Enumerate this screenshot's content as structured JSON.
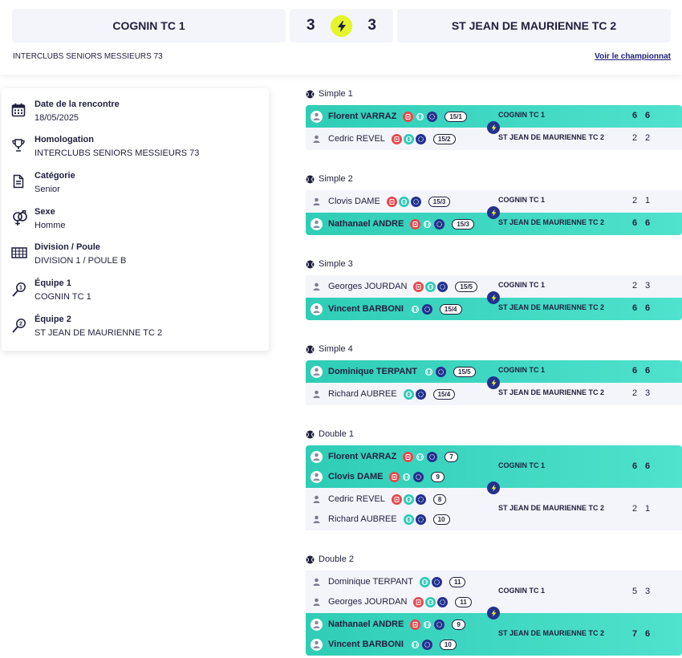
{
  "header": {
    "home_team": "COGNIN TC 1",
    "away_team": "ST JEAN DE MAURIENNE TC 2",
    "home_score": "3",
    "away_score": "3",
    "competition": "INTERCLUBS SENIORS MESSIEURS 73",
    "see_championship": "Voir le championnat"
  },
  "info": [
    {
      "icon": "calendar-icon",
      "label": "Date de la rencontre",
      "value": "18/05/2025"
    },
    {
      "icon": "trophy-icon",
      "label": "Homologation",
      "value": "INTERCLUBS SENIORS MESSIEURS 73"
    },
    {
      "icon": "document-icon",
      "label": "Catégorie",
      "value": "Senior"
    },
    {
      "icon": "gender-icon",
      "label": "Sexe",
      "value": "Homme"
    },
    {
      "icon": "grid-icon",
      "label": "Division / Poule",
      "value": "DIVISION 1 / POULE B"
    },
    {
      "icon": "racket-1-icon",
      "label": "Équipe 1",
      "value": "COGNIN TC 1"
    },
    {
      "icon": "racket-2-icon",
      "label": "Équipe 2",
      "value": "ST JEAN DE MAURIENNE TC 2"
    }
  ],
  "colors": {
    "win": "#3ed8c3",
    "lose": "#f4f5fb",
    "bolt": "#e4f52a",
    "navy": "#23308f",
    "red": "#e5484d"
  },
  "matches": [
    {
      "title": "Simple 1",
      "teams": [
        {
          "win": true,
          "team": "COGNIN TC 1",
          "scores": [
            "6",
            "6"
          ],
          "players": [
            {
              "name": "Florent VARRAZ",
              "badges": [
                "red",
                "teal",
                "blue"
              ],
              "rank": "15/1"
            }
          ]
        },
        {
          "win": false,
          "team": "ST JEAN DE MAURIENNE TC 2",
          "scores": [
            "2",
            "2"
          ],
          "players": [
            {
              "name": "Cedric REVEL",
              "badges": [
                "red",
                "teal",
                "blue"
              ],
              "rank": "15/2"
            }
          ]
        }
      ]
    },
    {
      "title": "Simple 2",
      "teams": [
        {
          "win": false,
          "team": "COGNIN TC 1",
          "scores": [
            "2",
            "1"
          ],
          "players": [
            {
              "name": "Clovis DAME",
              "badges": [
                "red",
                "teal",
                "blue"
              ],
              "rank": "15/3"
            }
          ]
        },
        {
          "win": true,
          "team": "ST JEAN DE MAURIENNE TC 2",
          "scores": [
            "6",
            "6"
          ],
          "players": [
            {
              "name": "Nathanael ANDRE",
              "badges": [
                "red",
                "teal",
                "blue"
              ],
              "rank": "15/3"
            }
          ]
        }
      ]
    },
    {
      "title": "Simple 3",
      "teams": [
        {
          "win": false,
          "team": "COGNIN TC 1",
          "scores": [
            "2",
            "3"
          ],
          "players": [
            {
              "name": "Georges JOURDAN",
              "badges": [
                "red",
                "teal",
                "blue"
              ],
              "rank": "15/5"
            }
          ]
        },
        {
          "win": true,
          "team": "ST JEAN DE MAURIENNE TC 2",
          "scores": [
            "6",
            "6"
          ],
          "players": [
            {
              "name": "Vincent BARBONI",
              "badges": [
                "teal",
                "blue"
              ],
              "rank": "15/4"
            }
          ]
        }
      ]
    },
    {
      "title": "Simple 4",
      "teams": [
        {
          "win": true,
          "team": "COGNIN TC 1",
          "scores": [
            "6",
            "6"
          ],
          "players": [
            {
              "name": "Dominique TERPANT",
              "badges": [
                "teal",
                "blue"
              ],
              "rank": "15/5"
            }
          ]
        },
        {
          "win": false,
          "team": "ST JEAN DE MAURIENNE TC 2",
          "scores": [
            "2",
            "3"
          ],
          "players": [
            {
              "name": "Richard AUBREE",
              "badges": [
                "teal",
                "blue"
              ],
              "rank": "15/4"
            }
          ]
        }
      ]
    },
    {
      "title": "Double 1",
      "teams": [
        {
          "win": true,
          "team": "COGNIN TC 1",
          "scores": [
            "6",
            "6"
          ],
          "players": [
            {
              "name": "Florent VARRAZ",
              "badges": [
                "red",
                "teal",
                "blue"
              ],
              "rank": "7"
            },
            {
              "name": "Clovis DAME",
              "badges": [
                "red",
                "teal",
                "blue"
              ],
              "rank": "9"
            }
          ]
        },
        {
          "win": false,
          "team": "ST JEAN DE MAURIENNE TC 2",
          "scores": [
            "2",
            "1"
          ],
          "players": [
            {
              "name": "Cedric REVEL",
              "badges": [
                "red",
                "teal",
                "blue"
              ],
              "rank": "8"
            },
            {
              "name": "Richard AUBREE",
              "badges": [
                "teal",
                "blue"
              ],
              "rank": "10"
            }
          ]
        }
      ]
    },
    {
      "title": "Double 2",
      "teams": [
        {
          "win": false,
          "team": "COGNIN TC 1",
          "scores": [
            "5",
            "3"
          ],
          "players": [
            {
              "name": "Dominique TERPANT",
              "badges": [
                "teal",
                "blue"
              ],
              "rank": "11"
            },
            {
              "name": "Georges JOURDAN",
              "badges": [
                "red",
                "teal",
                "blue"
              ],
              "rank": "11"
            }
          ]
        },
        {
          "win": true,
          "team": "ST JEAN DE MAURIENNE TC 2",
          "scores": [
            "7",
            "6"
          ],
          "players": [
            {
              "name": "Nathanael ANDRE",
              "badges": [
                "red",
                "teal",
                "blue"
              ],
              "rank": "9"
            },
            {
              "name": "Vincent BARBONI",
              "badges": [
                "teal",
                "blue"
              ],
              "rank": "10"
            }
          ]
        }
      ]
    }
  ]
}
